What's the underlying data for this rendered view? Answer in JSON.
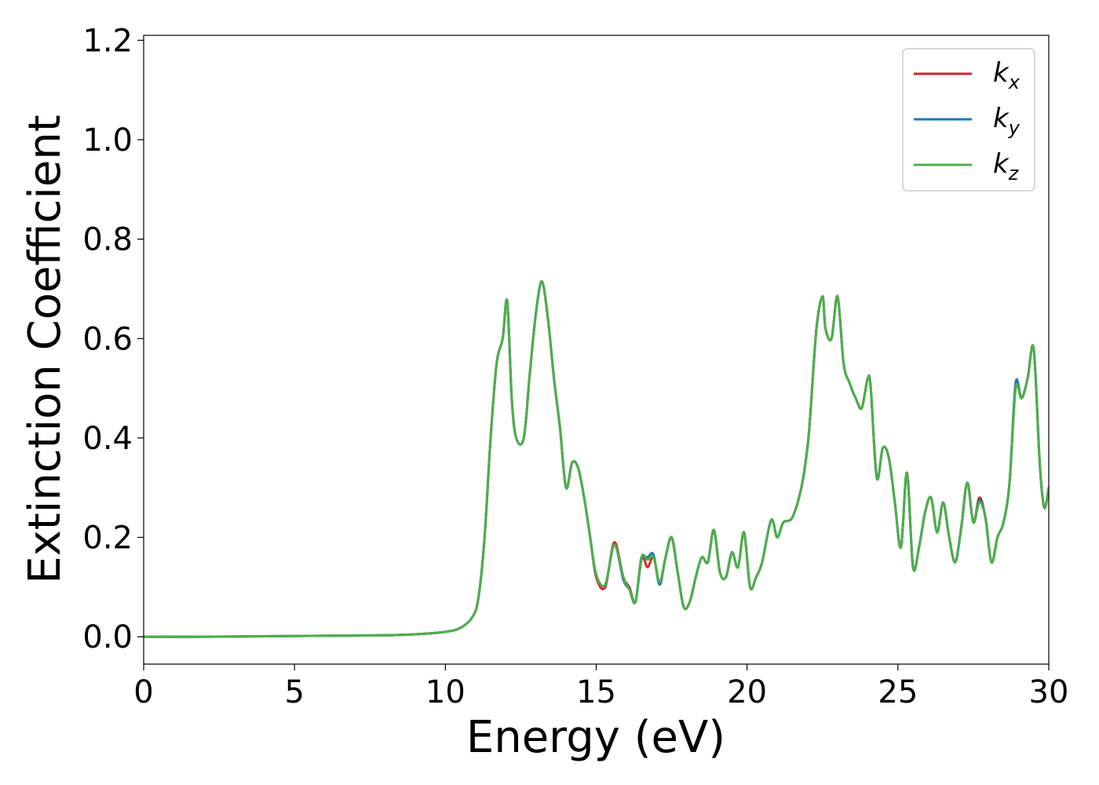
{
  "chart_data": {
    "type": "line",
    "title": "",
    "xlabel": "Energy (eV)",
    "ylabel": "Extinction Coefficient",
    "xlim": [
      0,
      30
    ],
    "ylim": [
      -0.055,
      1.21
    ],
    "xticks": [
      0,
      5,
      10,
      15,
      20,
      25,
      30
    ],
    "xtick_labels": [
      "0",
      "5",
      "10",
      "15",
      "20",
      "25",
      "30"
    ],
    "yticks": [
      0.0,
      0.2,
      0.4,
      0.6,
      0.8,
      1.0,
      1.2
    ],
    "ytick_labels": [
      "0.0",
      "0.2",
      "0.4",
      "0.6",
      "0.8",
      "1.0",
      "1.2"
    ],
    "grid": false,
    "legend_position": "top-right",
    "series": [
      {
        "name": "k_x",
        "label_main": "k",
        "label_sub": "x",
        "color": "#d62728",
        "x": [
          0,
          2,
          4,
          6,
          8,
          9,
          10,
          10.5,
          10.9,
          11.1,
          11.3,
          11.5,
          11.7,
          11.9,
          12.05,
          12.2,
          12.35,
          12.6,
          12.8,
          13.0,
          13.2,
          13.4,
          13.6,
          13.8,
          14.0,
          14.2,
          14.4,
          14.6,
          14.8,
          15.0,
          15.3,
          15.6,
          15.9,
          16.1,
          16.3,
          16.5,
          16.7,
          16.9,
          17.1,
          17.3,
          17.5,
          17.7,
          17.9,
          18.1,
          18.3,
          18.5,
          18.7,
          18.9,
          19.1,
          19.3,
          19.5,
          19.7,
          19.9,
          20.1,
          20.3,
          20.5,
          20.8,
          21.0,
          21.2,
          21.5,
          21.8,
          22.0,
          22.1,
          22.3,
          22.5,
          22.6,
          22.8,
          23.0,
          23.2,
          23.4,
          23.6,
          23.8,
          24.0,
          24.1,
          24.3,
          24.5,
          24.7,
          24.9,
          25.1,
          25.3,
          25.5,
          25.7,
          25.9,
          26.1,
          26.3,
          26.5,
          26.7,
          26.9,
          27.1,
          27.3,
          27.5,
          27.7,
          27.9,
          28.1,
          28.3,
          28.5,
          28.7,
          28.9,
          29.1,
          29.3,
          29.5,
          29.7,
          29.85,
          30
        ],
        "y": [
          0.0,
          0.0,
          0.001,
          0.002,
          0.003,
          0.005,
          0.01,
          0.018,
          0.04,
          0.08,
          0.2,
          0.4,
          0.55,
          0.6,
          0.675,
          0.48,
          0.4,
          0.4,
          0.53,
          0.65,
          0.715,
          0.64,
          0.52,
          0.42,
          0.3,
          0.35,
          0.34,
          0.28,
          0.2,
          0.12,
          0.1,
          0.19,
          0.12,
          0.1,
          0.07,
          0.16,
          0.14,
          0.16,
          0.11,
          0.16,
          0.2,
          0.13,
          0.06,
          0.07,
          0.12,
          0.16,
          0.15,
          0.215,
          0.13,
          0.12,
          0.17,
          0.14,
          0.21,
          0.1,
          0.12,
          0.15,
          0.235,
          0.2,
          0.23,
          0.24,
          0.3,
          0.38,
          0.45,
          0.62,
          0.685,
          0.62,
          0.6,
          0.685,
          0.55,
          0.51,
          0.48,
          0.46,
          0.52,
          0.5,
          0.32,
          0.38,
          0.36,
          0.27,
          0.18,
          0.33,
          0.14,
          0.18,
          0.25,
          0.28,
          0.21,
          0.27,
          0.2,
          0.15,
          0.22,
          0.31,
          0.23,
          0.28,
          0.24,
          0.15,
          0.2,
          0.23,
          0.31,
          0.5,
          0.48,
          0.52,
          0.58,
          0.35,
          0.26,
          0.3
        ]
      },
      {
        "name": "k_y",
        "label_main": "k",
        "label_sub": "y",
        "color": "#1f77b4",
        "x": [
          0,
          2,
          4,
          6,
          8,
          9,
          10,
          10.5,
          10.9,
          11.1,
          11.3,
          11.5,
          11.7,
          11.9,
          12.05,
          12.2,
          12.35,
          12.6,
          12.8,
          13.0,
          13.2,
          13.4,
          13.6,
          13.8,
          14.0,
          14.2,
          14.4,
          14.6,
          14.8,
          15.0,
          15.3,
          15.6,
          15.9,
          16.1,
          16.3,
          16.5,
          16.7,
          16.9,
          17.1,
          17.3,
          17.5,
          17.7,
          17.9,
          18.1,
          18.3,
          18.5,
          18.7,
          18.9,
          19.1,
          19.3,
          19.5,
          19.7,
          19.9,
          20.1,
          20.3,
          20.5,
          20.8,
          21.0,
          21.2,
          21.5,
          21.8,
          22.0,
          22.1,
          22.3,
          22.5,
          22.6,
          22.8,
          23.0,
          23.2,
          23.4,
          23.6,
          23.8,
          24.0,
          24.1,
          24.3,
          24.5,
          24.7,
          24.9,
          25.1,
          25.3,
          25.5,
          25.7,
          25.9,
          26.1,
          26.3,
          26.5,
          26.7,
          26.9,
          27.1,
          27.3,
          27.5,
          27.7,
          27.9,
          28.1,
          28.3,
          28.5,
          28.7,
          28.9,
          29.1,
          29.3,
          29.5,
          29.7,
          29.85,
          30
        ],
        "y": [
          0.0,
          0.0,
          0.001,
          0.002,
          0.003,
          0.005,
          0.01,
          0.018,
          0.04,
          0.08,
          0.2,
          0.4,
          0.55,
          0.6,
          0.675,
          0.48,
          0.4,
          0.4,
          0.53,
          0.65,
          0.715,
          0.64,
          0.52,
          0.42,
          0.3,
          0.35,
          0.34,
          0.28,
          0.2,
          0.125,
          0.105,
          0.185,
          0.115,
          0.095,
          0.07,
          0.155,
          0.16,
          0.165,
          0.105,
          0.16,
          0.2,
          0.13,
          0.06,
          0.07,
          0.12,
          0.16,
          0.15,
          0.215,
          0.13,
          0.12,
          0.17,
          0.14,
          0.21,
          0.1,
          0.12,
          0.15,
          0.235,
          0.2,
          0.23,
          0.24,
          0.3,
          0.38,
          0.45,
          0.62,
          0.685,
          0.62,
          0.6,
          0.685,
          0.55,
          0.51,
          0.48,
          0.46,
          0.52,
          0.5,
          0.32,
          0.38,
          0.36,
          0.27,
          0.18,
          0.33,
          0.14,
          0.18,
          0.25,
          0.28,
          0.21,
          0.27,
          0.2,
          0.15,
          0.22,
          0.31,
          0.23,
          0.275,
          0.24,
          0.15,
          0.2,
          0.23,
          0.31,
          0.51,
          0.48,
          0.52,
          0.58,
          0.35,
          0.26,
          0.3
        ]
      },
      {
        "name": "k_z",
        "label_main": "k",
        "label_sub": "z",
        "color": "#4daf4a",
        "x": [
          0,
          2,
          4,
          6,
          8,
          9,
          10,
          10.5,
          10.9,
          11.1,
          11.3,
          11.5,
          11.7,
          11.9,
          12.05,
          12.2,
          12.35,
          12.6,
          12.8,
          13.0,
          13.2,
          13.4,
          13.6,
          13.8,
          14.0,
          14.2,
          14.4,
          14.6,
          14.8,
          15.0,
          15.3,
          15.6,
          15.9,
          16.1,
          16.3,
          16.5,
          16.7,
          16.9,
          17.1,
          17.3,
          17.5,
          17.7,
          17.9,
          18.1,
          18.3,
          18.5,
          18.7,
          18.9,
          19.1,
          19.3,
          19.5,
          19.7,
          19.9,
          20.1,
          20.3,
          20.5,
          20.8,
          21.0,
          21.2,
          21.5,
          21.8,
          22.0,
          22.1,
          22.3,
          22.5,
          22.6,
          22.8,
          23.0,
          23.2,
          23.4,
          23.6,
          23.8,
          24.0,
          24.1,
          24.3,
          24.5,
          24.7,
          24.9,
          25.1,
          25.3,
          25.5,
          25.7,
          25.9,
          26.1,
          26.3,
          26.5,
          26.7,
          26.9,
          27.1,
          27.3,
          27.5,
          27.7,
          27.9,
          28.1,
          28.3,
          28.5,
          28.7,
          28.9,
          29.1,
          29.3,
          29.5,
          29.7,
          29.85,
          30
        ],
        "y": [
          0.0,
          0.0,
          0.001,
          0.002,
          0.003,
          0.005,
          0.01,
          0.018,
          0.04,
          0.08,
          0.2,
          0.4,
          0.55,
          0.6,
          0.675,
          0.48,
          0.4,
          0.4,
          0.53,
          0.65,
          0.715,
          0.64,
          0.52,
          0.42,
          0.3,
          0.35,
          0.34,
          0.28,
          0.2,
          0.125,
          0.105,
          0.185,
          0.12,
          0.095,
          0.07,
          0.16,
          0.155,
          0.16,
          0.11,
          0.16,
          0.2,
          0.13,
          0.06,
          0.07,
          0.12,
          0.16,
          0.15,
          0.215,
          0.13,
          0.12,
          0.17,
          0.14,
          0.21,
          0.1,
          0.12,
          0.15,
          0.235,
          0.2,
          0.23,
          0.24,
          0.3,
          0.38,
          0.45,
          0.62,
          0.685,
          0.62,
          0.6,
          0.685,
          0.55,
          0.51,
          0.48,
          0.46,
          0.52,
          0.5,
          0.32,
          0.38,
          0.36,
          0.27,
          0.18,
          0.33,
          0.14,
          0.18,
          0.25,
          0.28,
          0.21,
          0.27,
          0.2,
          0.15,
          0.22,
          0.31,
          0.23,
          0.27,
          0.24,
          0.15,
          0.2,
          0.23,
          0.31,
          0.5,
          0.48,
          0.52,
          0.58,
          0.35,
          0.26,
          0.3
        ]
      }
    ]
  }
}
